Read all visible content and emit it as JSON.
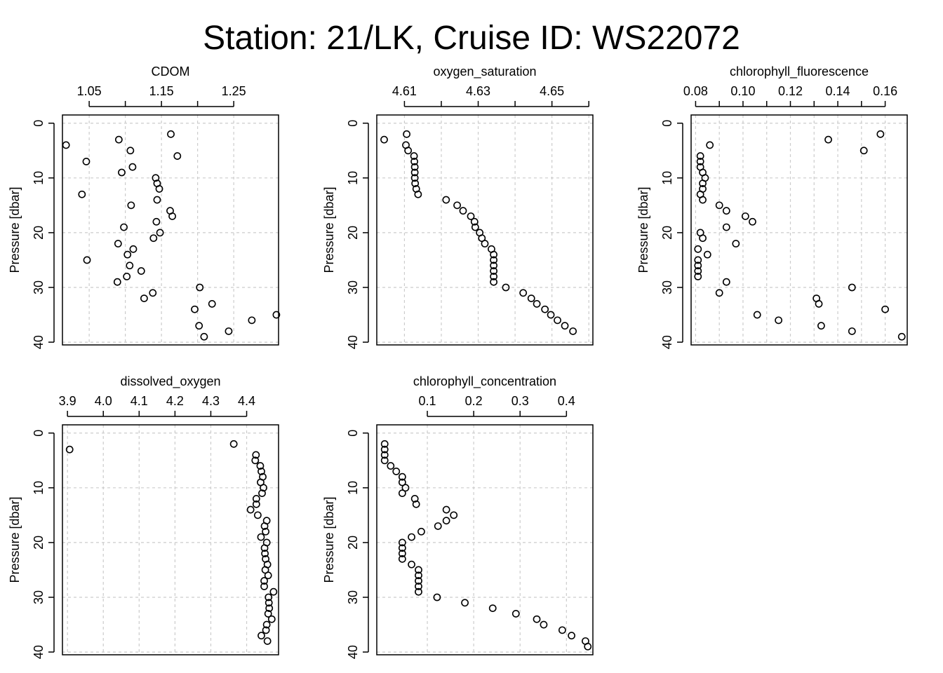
{
  "title": "Station: 21/LK, Cruise ID: WS22072",
  "chart_data": [
    {
      "type": "scatter",
      "title": "CDOM",
      "ylabel": "Pressure [dbar]",
      "xlim": [
        1.013,
        1.312
      ],
      "ylim": [
        40.5,
        -1.5
      ],
      "xticks": [
        1.05,
        1.1,
        1.15,
        1.2,
        1.25
      ],
      "xtick_labels": [
        "1.05",
        "",
        "1.15",
        "",
        "1.25"
      ],
      "yticks": [
        0,
        10,
        20,
        30,
        40
      ],
      "ytick_labels": [
        "0",
        "10",
        "20",
        "30",
        "40"
      ],
      "grid": true,
      "y": [
        2,
        3,
        4,
        5,
        6,
        7,
        8,
        9,
        10,
        11,
        12,
        13,
        14,
        15,
        16,
        17,
        18,
        19,
        20,
        21,
        22,
        23,
        24,
        25,
        26,
        27,
        28,
        29,
        30,
        31,
        32,
        33,
        34,
        35,
        36,
        37,
        38,
        39
      ],
      "x": [
        1.163,
        1.091,
        1.018,
        1.107,
        1.172,
        1.046,
        1.11,
        1.095,
        1.142,
        1.144,
        1.147,
        1.04,
        1.144,
        1.108,
        1.162,
        1.165,
        1.143,
        1.098,
        1.148,
        1.139,
        1.09,
        1.111,
        1.103,
        1.047,
        1.106,
        1.122,
        1.102,
        1.089,
        1.203,
        1.138,
        1.126,
        1.22,
        1.196,
        1.309,
        1.275,
        1.202,
        1.243,
        1.209
      ]
    },
    {
      "type": "scatter",
      "title": "oxygen_saturation",
      "ylabel": "Pressure [dbar]",
      "xlim": [
        4.6025,
        4.6611
      ],
      "ylim": [
        40.5,
        -1.5
      ],
      "xticks": [
        4.61,
        4.62,
        4.63,
        4.64,
        4.65,
        4.66
      ],
      "xtick_labels": [
        "4.61",
        "",
        "4.63",
        "",
        "4.65",
        ""
      ],
      "yticks": [
        0,
        10,
        20,
        30,
        40
      ],
      "ytick_labels": [
        "0",
        "10",
        "20",
        "30",
        "40"
      ],
      "grid": true,
      "y": [
        2,
        3,
        4,
        5,
        6,
        7,
        8,
        9,
        10,
        11,
        12,
        13,
        14,
        15,
        16,
        17,
        18,
        19,
        20,
        21,
        22,
        23,
        24,
        25,
        26,
        27,
        28,
        29,
        30,
        31,
        32,
        33,
        34,
        35,
        36,
        37,
        38
      ],
      "x": [
        4.6106,
        4.6045,
        4.6104,
        4.611,
        4.6126,
        4.6127,
        4.6128,
        4.6128,
        4.6128,
        4.6129,
        4.6132,
        4.6137,
        4.6213,
        4.6243,
        4.6259,
        4.628,
        4.629,
        4.6292,
        4.6304,
        4.631,
        4.6318,
        4.6336,
        4.6342,
        4.6342,
        4.6342,
        4.6342,
        4.6342,
        4.6342,
        4.6375,
        4.6422,
        4.6444,
        4.6459,
        4.6481,
        4.6497,
        4.6515,
        4.6535,
        4.6557
      ]
    },
    {
      "type": "scatter",
      "title": "chlorophyll_fluorescence",
      "ylabel": "Pressure [dbar]",
      "xlim": [
        0.0781,
        0.1693
      ],
      "ylim": [
        40.5,
        -1.5
      ],
      "xticks": [
        0.08,
        0.09,
        0.1,
        0.11,
        0.12,
        0.13,
        0.14,
        0.15,
        0.16
      ],
      "xtick_labels": [
        "0.08",
        "",
        "0.10",
        "",
        "0.12",
        "",
        "0.14",
        "",
        "0.16"
      ],
      "yticks": [
        0,
        10,
        20,
        30,
        40
      ],
      "ytick_labels": [
        "0",
        "10",
        "20",
        "30",
        "40"
      ],
      "grid": true,
      "y": [
        2,
        3,
        4,
        5,
        6,
        7,
        8,
        9,
        10,
        11,
        12,
        13,
        14,
        15,
        16,
        17,
        18,
        19,
        20,
        21,
        22,
        23,
        24,
        25,
        26,
        27,
        28,
        29,
        30,
        31,
        32,
        33,
        34,
        35,
        36,
        37,
        38,
        39
      ],
      "x": [
        0.158,
        0.136,
        0.086,
        0.151,
        0.082,
        0.082,
        0.082,
        0.083,
        0.084,
        0.083,
        0.083,
        0.082,
        0.083,
        0.09,
        0.093,
        0.101,
        0.104,
        0.093,
        0.082,
        0.083,
        0.097,
        0.081,
        0.085,
        0.081,
        0.081,
        0.081,
        0.081,
        0.093,
        0.146,
        0.09,
        0.131,
        0.132,
        0.16,
        0.106,
        0.115,
        0.133,
        0.146,
        0.167
      ]
    },
    {
      "type": "scatter",
      "title": "dissolved_oxygen",
      "ylabel": "Pressure [dbar]",
      "xlim": [
        3.886,
        4.489
      ],
      "ylim": [
        40.5,
        -1.5
      ],
      "xticks": [
        3.9,
        4.0,
        4.1,
        4.2,
        4.3,
        4.4
      ],
      "xtick_labels": [
        "3.9",
        "4.0",
        "4.1",
        "4.2",
        "4.3",
        "4.4"
      ],
      "yticks": [
        0,
        10,
        20,
        30,
        40
      ],
      "ytick_labels": [
        "0",
        "10",
        "20",
        "30",
        "40"
      ],
      "grid": true,
      "y": [
        2,
        3,
        4,
        5,
        6,
        7,
        8,
        9,
        10,
        11,
        12,
        13,
        14,
        15,
        16,
        17,
        18,
        19,
        20,
        21,
        22,
        23,
        24,
        25,
        26,
        27,
        28,
        29,
        30,
        31,
        32,
        33,
        34,
        35,
        36,
        37,
        38
      ],
      "x": [
        4.364,
        3.906,
        4.426,
        4.424,
        4.438,
        4.441,
        4.445,
        4.439,
        4.447,
        4.443,
        4.427,
        4.427,
        4.411,
        4.431,
        4.456,
        4.45,
        4.453,
        4.44,
        4.456,
        4.45,
        4.451,
        4.453,
        4.458,
        4.452,
        4.46,
        4.449,
        4.449,
        4.475,
        4.461,
        4.462,
        4.463,
        4.46,
        4.47,
        4.456,
        4.454,
        4.441,
        4.458
      ]
    },
    {
      "type": "scatter",
      "title": "chlorophyll_concentration",
      "ylabel": "Pressure [dbar]",
      "xlim": [
        -0.009,
        0.457
      ],
      "ylim": [
        40.5,
        -1.5
      ],
      "xticks": [
        0.1,
        0.2,
        0.3,
        0.4
      ],
      "xtick_labels": [
        "0.1",
        "0.2",
        "0.3",
        "0.4"
      ],
      "yticks": [
        0,
        10,
        20,
        30,
        40
      ],
      "ytick_labels": [
        "0",
        "10",
        "20",
        "30",
        "40"
      ],
      "grid": true,
      "y": [
        2,
        3,
        4,
        5,
        6,
        7,
        8,
        9,
        10,
        11,
        12,
        13,
        14,
        15,
        16,
        17,
        18,
        19,
        20,
        21,
        22,
        23,
        24,
        25,
        26,
        27,
        28,
        29,
        30,
        31,
        32,
        33,
        34,
        35,
        36,
        37,
        38,
        39
      ],
      "x": [
        0.008,
        0.008,
        0.008,
        0.008,
        0.021,
        0.033,
        0.046,
        0.046,
        0.053,
        0.046,
        0.073,
        0.076,
        0.141,
        0.157,
        0.141,
        0.123,
        0.087,
        0.066,
        0.046,
        0.046,
        0.046,
        0.046,
        0.066,
        0.081,
        0.081,
        0.081,
        0.081,
        0.081,
        0.121,
        0.181,
        0.241,
        0.291,
        0.336,
        0.351,
        0.391,
        0.411,
        0.441,
        0.446
      ]
    }
  ]
}
